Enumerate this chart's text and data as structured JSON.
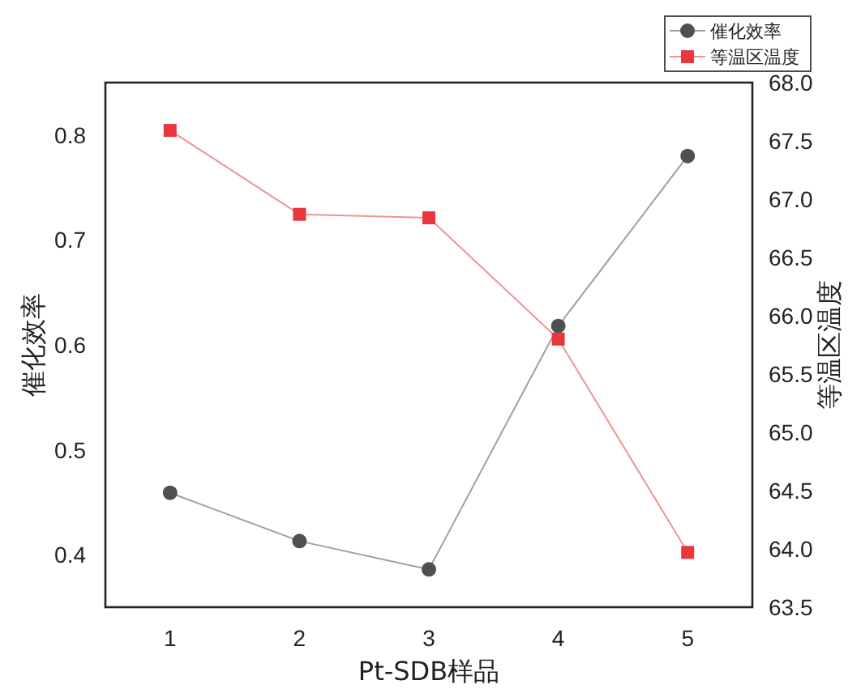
{
  "chart_data": {
    "type": "line",
    "xlabel": "Pt-SDB样品",
    "ylabel": "催化效率",
    "y2label": "等温区温度",
    "categories": [
      "1",
      "2",
      "3",
      "4",
      "5"
    ],
    "series": [
      {
        "name": "催化效率",
        "color": "#505050",
        "marker": "circle",
        "values": [
          0.459,
          0.413,
          0.386,
          0.618,
          0.78
        ]
      },
      {
        "name": "等温区温度",
        "color": "#e8383d",
        "marker": "square",
        "axis": "y2",
        "values": [
          67.59,
          66.87,
          66.84,
          65.8,
          63.97
        ]
      }
    ],
    "ylim": [
      0.35,
      0.85
    ],
    "yticks": [
      0.4,
      0.5,
      0.6,
      0.7,
      0.8
    ],
    "y2lim": [
      63.5,
      68.0
    ],
    "y2ticks": [
      63.5,
      {
        "value": 64,
        "label": "64.0"
      },
      64.5,
      {
        "value": 65,
        "label": "65.0"
      },
      65.5,
      {
        "value": 66,
        "label": "66.0"
      },
      66.5,
      {
        "value": 67,
        "label": "67.0"
      },
      67.5,
      {
        "value": 68,
        "label": "68.0"
      }
    ],
    "grid": false,
    "legend": "top right",
    "line_style": "solid"
  }
}
